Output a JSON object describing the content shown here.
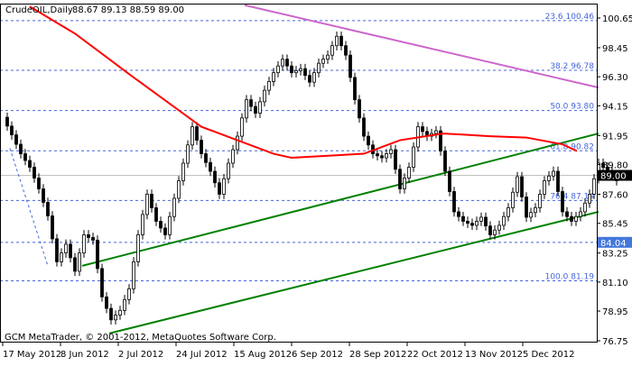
{
  "header": {
    "symbol_period": "CrudeOIL,Daily",
    "ohlc": "88.67 89.13 88.59 89.00"
  },
  "footer": {
    "copyright": "GCM MetaTrader, © 2001-2012, MetaQuotes Software Corp."
  },
  "chart_data": {
    "type": "candlestick",
    "ylim": [
      76.75,
      101.6
    ],
    "y_ticks": [
      "100.65",
      "98.45",
      "96.30",
      "94.15",
      "91.95",
      "89.80",
      "87.60",
      "85.45",
      "83.25",
      "81.10",
      "78.95",
      "76.75"
    ],
    "x_ticks": [
      {
        "label": "17 May 2012",
        "bar": 0
      },
      {
        "label": "8 Jun 2012",
        "bar": 16
      },
      {
        "label": "2 Jul 2012",
        "bar": 32
      },
      {
        "label": "24 Jul 2012",
        "bar": 48
      },
      {
        "label": "15 Aug 2012",
        "bar": 64
      },
      {
        "label": "6 Sep 2012",
        "bar": 80
      },
      {
        "label": "28 Sep 2012",
        "bar": 96
      },
      {
        "label": "22 Oct 2012",
        "bar": 112
      },
      {
        "label": "13 Nov 2012",
        "bar": 128
      },
      {
        "label": "5 Dec 2012",
        "bar": 144
      }
    ],
    "closes_bar_step": 2.5,
    "closes": [
      93.3,
      92.0,
      90.6,
      89.6,
      88.0,
      86.0,
      82.6,
      83.9,
      81.9,
      84.6,
      84.2,
      80.0,
      78.3,
      79.0,
      80.6,
      84.6,
      87.6,
      85.6,
      84.6,
      87.3,
      89.9,
      92.6,
      90.6,
      89.3,
      87.6,
      89.9,
      91.9,
      94.6,
      93.6,
      95.3,
      96.6,
      97.6,
      96.6,
      96.9,
      95.9,
      97.3,
      97.9,
      99.3,
      97.9,
      94.6,
      91.9,
      90.6,
      90.3,
      90.9,
      88.0,
      89.6,
      92.6,
      91.9,
      92.3,
      89.3,
      86.3,
      85.6,
      85.3,
      85.9,
      84.6,
      85.3,
      86.6,
      88.9,
      85.9,
      86.6,
      88.6,
      89.3,
      86.3,
      85.6,
      86.3,
      87.6,
      89.9,
      89.3,
      88.6
    ],
    "moving_average": {
      "color": "#ff0000",
      "points": [
        [
          7.5,
          101.5
        ],
        [
          20,
          99.5
        ],
        [
          35,
          96.5
        ],
        [
          55,
          92.6
        ],
        [
          75,
          90.6
        ],
        [
          80,
          90.3
        ],
        [
          100,
          90.6
        ],
        [
          110,
          91.6
        ],
        [
          122,
          92.1
        ],
        [
          135,
          91.9
        ],
        [
          145,
          91.8
        ],
        [
          155,
          91.3
        ],
        [
          159,
          90.8
        ]
      ]
    },
    "trendlines": [
      {
        "color": "#cc66cc",
        "from": [
          67,
          101.6
        ],
        "to": [
          165,
          95.5
        ]
      },
      {
        "color": "#008000",
        "from": [
          22,
          82.3
        ],
        "to": [
          165,
          92.1
        ]
      },
      {
        "color": "#008000",
        "from": [
          29.5,
          77.3
        ],
        "to": [
          165,
          86.3
        ]
      },
      {
        "color": "#4466dd",
        "dashed": true,
        "from": [
          2,
          91.0
        ],
        "to": [
          12.5,
          82.3
        ]
      }
    ],
    "fibonacci": {
      "color": "#4466dd",
      "levels": [
        {
          "label": "23.6 100.46",
          "price": 100.46
        },
        {
          "label": "38.2 96.78",
          "price": 96.78
        },
        {
          "label": "50.0 93.80",
          "price": 93.8
        },
        {
          "label": "61.8 90.82",
          "price": 90.82
        },
        {
          "label": "76.4 87.14",
          "price": 87.14
        },
        {
          "label": "100.0 81.19",
          "price": 81.19
        }
      ]
    },
    "marker_level": {
      "label": "84.04",
      "price": 84.04,
      "color": "#4477dd"
    },
    "current_price": {
      "label": "89.00",
      "price": 89.0
    }
  }
}
